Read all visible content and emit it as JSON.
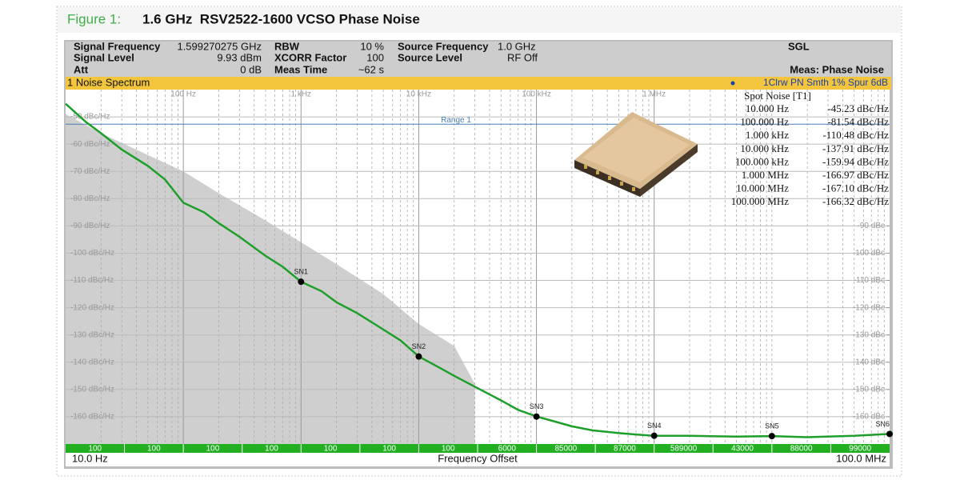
{
  "figure_label": "Figure 1:",
  "figure_title": "1.6 GHz  RSV2522-1600 VCSO Phase Noise",
  "info": [
    {
      "label": "Signal Frequency",
      "value": "1.599270275 GHz"
    },
    {
      "label": "Signal Level",
      "value": "9.93 dBm"
    },
    {
      "label": "Att",
      "value": "0 dB"
    },
    {
      "label": "RBW",
      "value": "10 %"
    },
    {
      "label": "XCORR Factor",
      "value": "100"
    },
    {
      "label": "Meas Time",
      "value": "~62 s"
    },
    {
      "label": "Source Frequency",
      "value": "1.0 GHz"
    },
    {
      "label": "Source Level",
      "value": "RF Off"
    }
  ],
  "mode": "SGL",
  "measurement": "Meas: Phase Noise",
  "spot_noise": {
    "title": "Spot Noise [T1]",
    "rows": [
      {
        "offset": "10.000 Hz",
        "value": "-45.23 dBc/Hz"
      },
      {
        "offset": "100.000 Hz",
        "value": "-81.54 dBc/Hz"
      },
      {
        "offset": "1.000 kHz",
        "value": "-110.48 dBc/Hz"
      },
      {
        "offset": "10.000 kHz",
        "value": "-137.91 dBc/Hz"
      },
      {
        "offset": "100.000 kHz",
        "value": "-159.94 dBc/Hz"
      },
      {
        "offset": "1.000 MHz",
        "value": "-166.97 dBc/Hz"
      },
      {
        "offset": "10.000 MHz",
        "value": "-167.10 dBc/Hz"
      },
      {
        "offset": "100.000 MHz",
        "value": "-166.32 dBc/Hz"
      }
    ]
  },
  "chart_data": {
    "type": "line",
    "title": "1 Noise Spectrum",
    "x_label": "Frequency Offset",
    "x_start_label": "10.0 Hz",
    "x_end_label": "100.0 MHz",
    "xscale": "log",
    "xlim": [
      10,
      100000000
    ],
    "ylim": [
      -170,
      -40
    ],
    "xticks": [
      {
        "value": 100,
        "label": "100 Hz"
      },
      {
        "value": 1000,
        "label": "1 kHz"
      },
      {
        "value": 10000,
        "label": "10 kHz"
      },
      {
        "value": 100000,
        "label": "100 kHz"
      },
      {
        "value": 1000000,
        "label": "1 MHz"
      }
    ],
    "x_minor_grid": [
      20,
      30,
      40,
      50,
      60,
      70,
      80,
      90,
      200,
      300,
      400,
      500,
      600,
      700,
      800,
      900,
      2000,
      3000,
      4000,
      5000,
      6000,
      7000,
      8000,
      9000,
      20000,
      30000,
      40000,
      50000,
      60000,
      70000,
      80000,
      90000,
      200000,
      300000,
      400000,
      500000,
      600000,
      700000,
      800000,
      900000,
      2000000,
      3000000,
      4000000,
      5000000,
      6000000,
      7000000,
      8000000,
      9000000,
      10000000,
      20000000,
      30000000,
      40000000,
      50000000,
      60000000,
      70000000,
      80000000,
      90000000
    ],
    "yticks": [
      {
        "value": -50,
        "label": "-50 dBc/Hz"
      },
      {
        "value": -60,
        "label": "-60 dBc/Hz"
      },
      {
        "value": -70,
        "label": "-70 dBc/Hz"
      },
      {
        "value": -80,
        "label": "-80 dBc/Hz"
      },
      {
        "value": -90,
        "label": "-90 dBc/Hz"
      },
      {
        "value": -100,
        "label": "-100 dBc/Hz"
      },
      {
        "value": -110,
        "label": "-110 dBc/Hz"
      },
      {
        "value": -120,
        "label": "-120 dBc/Hz"
      },
      {
        "value": -130,
        "label": "-130 dBc/Hz"
      },
      {
        "value": -140,
        "label": "-140 dBc/Hz"
      },
      {
        "value": -150,
        "label": "-150 dBc/Hz"
      },
      {
        "value": -160,
        "label": "-160 dBc/Hz"
      }
    ],
    "y2ticks": [
      {
        "value": -90,
        "label": "-90 dBc"
      },
      {
        "value": -100,
        "label": "-100 dBc"
      },
      {
        "value": -110,
        "label": "-110 dBc"
      },
      {
        "value": -120,
        "label": "-120 dBc"
      },
      {
        "value": -130,
        "label": "-130 dBc"
      },
      {
        "value": -140,
        "label": "-140 dBc"
      },
      {
        "value": -150,
        "label": "-150 dBc"
      },
      {
        "value": -160,
        "label": "-160 dBc"
      }
    ],
    "grid": true,
    "range_line": {
      "label": "Range 1",
      "value": -52.7,
      "color": "#4a7fb5"
    },
    "x": [
      10,
      15,
      20,
      30,
      50,
      70,
      100,
      150,
      200,
      300,
      500,
      700,
      1000,
      1500,
      2000,
      3000,
      5000,
      7000,
      10000,
      15000,
      20000,
      30000,
      50000,
      70000,
      100000,
      150000,
      200000,
      300000,
      500000,
      700000,
      1000000,
      2000000,
      5000000,
      10000000,
      20000000,
      50000000,
      100000000
    ],
    "series": [
      {
        "name": "1Clrw PN Smth 1% Spur 6dB",
        "color": "#1e9e2a",
        "legend_color": "#1a3fa8",
        "values": [
          -45.2,
          -52,
          -56,
          -62,
          -68,
          -73,
          -81.5,
          -85,
          -89,
          -94,
          -101,
          -105,
          -110.5,
          -114,
          -118,
          -122,
          -128,
          -132,
          -137.9,
          -142,
          -145,
          -149,
          -154,
          -157.5,
          -159.9,
          -162,
          -163.5,
          -165,
          -166,
          -166.5,
          -167,
          -167,
          -167.3,
          -167.1,
          -167.5,
          -167,
          -166.3
        ]
      }
    ],
    "area": {
      "color": "#cfcfcf",
      "x": [
        10,
        20,
        50,
        100,
        200,
        500,
        1000,
        2000,
        5000,
        10000,
        20000,
        30000
      ],
      "values": [
        -49,
        -56,
        -64,
        -70,
        -78,
        -88,
        -96,
        -104,
        -115,
        -126,
        -134,
        -148
      ]
    },
    "markers": {
      "names": [
        "SN1",
        "SN2",
        "SN3",
        "SN4",
        "SN5",
        "SN6"
      ],
      "x": [
        1000,
        10000,
        100000,
        1000000,
        10000000,
        100000000
      ],
      "values": [
        -110.48,
        -137.91,
        -159.94,
        -166.97,
        -167.1,
        -166.32
      ]
    },
    "averages": [
      100,
      100,
      100,
      100,
      100,
      100,
      100,
      6000,
      85000,
      87000,
      589000,
      43000,
      88000,
      99000
    ]
  }
}
